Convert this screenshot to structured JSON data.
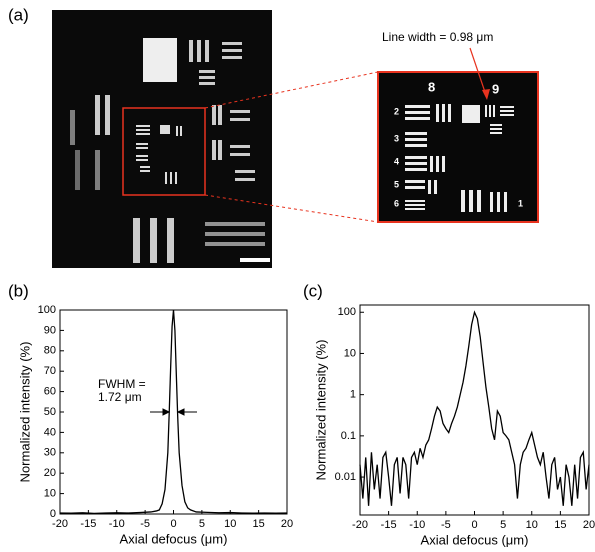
{
  "panel_a": {
    "label": "(a)",
    "annotation": "Line width = 0.98 μm",
    "inset_labels": [
      "8",
      "9",
      "2",
      "3",
      "4",
      "5",
      "6",
      "1"
    ]
  },
  "chart_data": [
    {
      "type": "line",
      "label": "(b)",
      "xlabel": "Axial defocus (μm)",
      "ylabel": "Normalized intensity (%)",
      "annotation": [
        "FWHM =",
        "1.72 μm"
      ],
      "xlim": [
        -20,
        20
      ],
      "xticks": [
        -20,
        -15,
        -10,
        -5,
        0,
        5,
        10,
        15,
        20
      ],
      "ylim": [
        0,
        100
      ],
      "yticks": [
        0,
        10,
        20,
        30,
        40,
        50,
        60,
        70,
        80,
        90,
        100
      ],
      "log": false,
      "color": "#000000",
      "x": [
        -20,
        -18,
        -16,
        -14,
        -12,
        -10,
        -8,
        -6,
        -4,
        -3,
        -2.5,
        -2,
        -1.5,
        -1,
        -0.75,
        -0.5,
        -0.25,
        0,
        0.25,
        0.5,
        0.75,
        1,
        1.5,
        2,
        2.5,
        3,
        4,
        6,
        8,
        10,
        12,
        14,
        16,
        18,
        20
      ],
      "values": [
        0.5,
        0.4,
        0.6,
        0.3,
        0.5,
        0.6,
        0.5,
        0.7,
        1,
        1.5,
        2,
        5,
        12,
        30,
        50,
        72,
        92,
        100,
        90,
        68,
        47,
        30,
        14,
        6,
        3,
        2,
        1,
        0.8,
        0.6,
        0.7,
        0.5,
        0.4,
        0.5,
        0.4,
        0.5
      ]
    },
    {
      "type": "line",
      "label": "(c)",
      "xlabel": "Axial defocus (μm)",
      "ylabel": "Normalized intensity (%)",
      "xlim": [
        -20,
        20
      ],
      "xticks": [
        -20,
        -15,
        -10,
        -5,
        0,
        5,
        10,
        15,
        20
      ],
      "ylim": [
        0.0012,
        150
      ],
      "yticks": [
        0.01,
        0.1,
        1,
        10,
        100
      ],
      "log": true,
      "color": "#000000",
      "x": [
        -20,
        -19.5,
        -19,
        -18.5,
        -18,
        -17.5,
        -17,
        -16.5,
        -16,
        -15.5,
        -15,
        -14.5,
        -14,
        -13.5,
        -13,
        -12.5,
        -12,
        -11.5,
        -11,
        -10.5,
        -10,
        -9.5,
        -9,
        -8.5,
        -8,
        -7.5,
        -7,
        -6.5,
        -6,
        -5.5,
        -5,
        -4.5,
        -4,
        -3.5,
        -3,
        -2.5,
        -2,
        -1.5,
        -1,
        -0.5,
        0,
        0.5,
        1,
        1.5,
        2,
        2.5,
        3,
        3.5,
        4,
        4.5,
        5,
        5.5,
        6,
        6.5,
        7,
        7.5,
        8,
        8.5,
        9,
        9.5,
        10,
        10.5,
        11,
        11.5,
        12,
        12.5,
        13,
        13.5,
        14,
        14.5,
        15,
        15.5,
        16,
        16.5,
        17,
        17.5,
        18,
        18.5,
        19,
        19.5,
        20
      ],
      "values": [
        0.02,
        0.003,
        0.03,
        0.002,
        0.04,
        0.005,
        0.02,
        0.003,
        0.03,
        0.04,
        0.01,
        0.002,
        0.02,
        0.03,
        0.004,
        0.03,
        0.02,
        0.003,
        0.03,
        0.04,
        0.02,
        0.05,
        0.03,
        0.06,
        0.08,
        0.15,
        0.3,
        0.5,
        0.4,
        0.2,
        0.15,
        0.12,
        0.2,
        0.3,
        0.5,
        1,
        2,
        5,
        15,
        50,
        100,
        70,
        25,
        6,
        1.5,
        0.5,
        0.15,
        0.08,
        0.4,
        0.3,
        0.12,
        0.1,
        0.08,
        0.04,
        0.02,
        0.003,
        0.02,
        0.04,
        0.05,
        0.08,
        0.12,
        0.06,
        0.03,
        0.02,
        0.04,
        0.01,
        0.003,
        0.02,
        0.03,
        0.005,
        0.01,
        0.002,
        0.02,
        0.01,
        0.002,
        0.02,
        0.003,
        0.03,
        0.04,
        0.005,
        0.02
      ]
    }
  ]
}
